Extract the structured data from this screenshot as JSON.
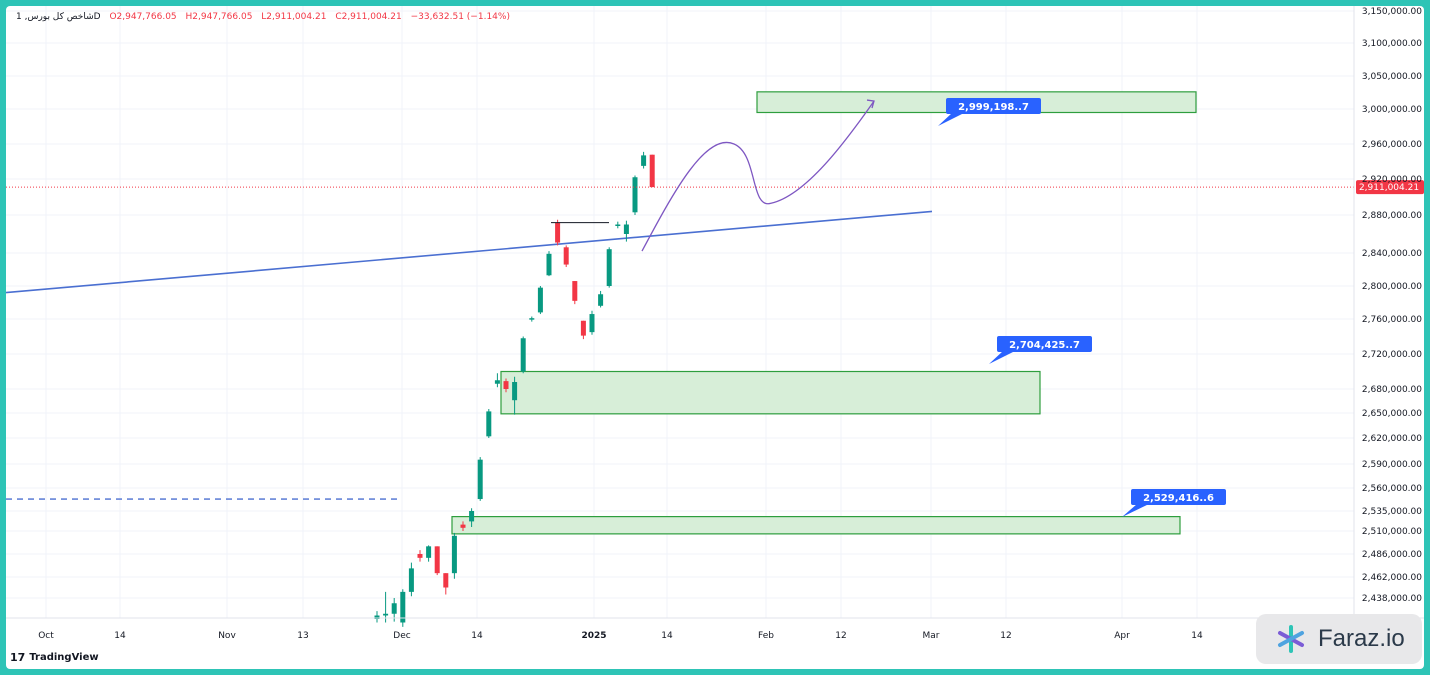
{
  "legend": {
    "symbol": "شاخص کل بورس, 1D",
    "o": "O2,947,766.05",
    "h": "H2,947,766.05",
    "l": "L2,911,004.21",
    "c": "C2,911,004.21",
    "change": "−33,632.51 (−1.14%)"
  },
  "branding": {
    "tradingview": "TradingView",
    "faraz": "Faraz.io"
  },
  "colors": {
    "up": "#089981",
    "down": "#f23645",
    "zone_fill": "#d7eed8",
    "zone_stroke": "#2e9e3e",
    "trendline": "#4a6fd1",
    "callout": "#2962ff",
    "path": "#7e57c2",
    "last_price_line": "#f23645"
  },
  "chart_data": {
    "type": "candlestick",
    "y_axis_ticks": [
      "3,150,000.00",
      "3,100,000.00",
      "3,050,000.00",
      "3,000,000.00",
      "2,960,000.00",
      "2,920,000.00",
      "2,880,000.00",
      "2,840,000.00",
      "2,800,000.00",
      "2,760,000.00",
      "2,720,000.00",
      "2,680,000.00",
      "2,650,000.00",
      "2,620,000.00",
      "2,590,000.00",
      "2,560,000.00",
      "2,535,000.00",
      "2,510,000.00",
      "2,486,000.00",
      "2,462,000.00",
      "2,438,000.00"
    ],
    "x_axis_labels": [
      "Oct",
      "14",
      "Nov",
      "13",
      "Dec",
      "14",
      "2025",
      "14",
      "Feb",
      "12",
      "Mar",
      "12",
      "Apr",
      "14"
    ],
    "last_price": "2,911,004.21",
    "candles": [
      {
        "o": 2414000,
        "h": 2423000,
        "l": 2410000,
        "c": 2418000
      },
      {
        "o": 2418000,
        "h": 2445000,
        "l": 2410000,
        "c": 2420000
      },
      {
        "o": 2420000,
        "h": 2438000,
        "l": 2411000,
        "c": 2432000
      },
      {
        "o": 2410000,
        "h": 2448000,
        "l": 2405000,
        "c": 2445000
      },
      {
        "o": 2445000,
        "h": 2477000,
        "l": 2440000,
        "c": 2471000
      },
      {
        "o": 2486000,
        "h": 2490000,
        "l": 2478000,
        "c": 2482000
      },
      {
        "o": 2482000,
        "h": 2495000,
        "l": 2478000,
        "c": 2494000
      },
      {
        "o": 2494000,
        "h": 2494000,
        "l": 2464000,
        "c": 2466000
      },
      {
        "o": 2466000,
        "h": 2466000,
        "l": 2442000,
        "c": 2450000
      },
      {
        "o": 2466000,
        "h": 2508000,
        "l": 2460000,
        "c": 2505000
      },
      {
        "o": 2518000,
        "h": 2522000,
        "l": 2510000,
        "c": 2514000
      },
      {
        "o": 2522000,
        "h": 2538000,
        "l": 2515000,
        "c": 2535000
      },
      {
        "o": 2548000,
        "h": 2598000,
        "l": 2546000,
        "c": 2595000
      },
      {
        "o": 2622000,
        "h": 2655000,
        "l": 2620000,
        "c": 2652000
      },
      {
        "o": 2686000,
        "h": 2698000,
        "l": 2682000,
        "c": 2690000
      },
      {
        "o": 2689000,
        "h": 2692000,
        "l": 2676000,
        "c": 2680000
      },
      {
        "o": 2666000,
        "h": 2694000,
        "l": 2648000,
        "c": 2688000
      },
      {
        "o": 2700000,
        "h": 2740000,
        "l": 2698000,
        "c": 2738000
      },
      {
        "o": 2760000,
        "h": 2763000,
        "l": 2757000,
        "c": 2761000
      },
      {
        "o": 2768000,
        "h": 2800000,
        "l": 2766000,
        "c": 2798000
      },
      {
        "o": 2813000,
        "h": 2842000,
        "l": 2812000,
        "c": 2839000
      },
      {
        "o": 2872000,
        "h": 2875000,
        "l": 2848000,
        "c": 2851000
      },
      {
        "o": 2846000,
        "h": 2848000,
        "l": 2823000,
        "c": 2826000
      },
      {
        "o": 2806000,
        "h": 2806000,
        "l": 2778000,
        "c": 2782000
      },
      {
        "o": 2758000,
        "h": 2758000,
        "l": 2737000,
        "c": 2741000
      },
      {
        "o": 2745000,
        "h": 2770000,
        "l": 2742000,
        "c": 2766000
      },
      {
        "o": 2776000,
        "h": 2794000,
        "l": 2774000,
        "c": 2790000
      },
      {
        "o": 2800000,
        "h": 2846000,
        "l": 2798000,
        "c": 2844000
      },
      {
        "o": 2869000,
        "h": 2873000,
        "l": 2866000,
        "c": 2870000
      },
      {
        "o": 2860000,
        "h": 2874000,
        "l": 2852000,
        "c": 2870000
      },
      {
        "o": 2883000,
        "h": 2924000,
        "l": 2880000,
        "c": 2922000
      },
      {
        "o": 2935000,
        "h": 2951000,
        "l": 2932000,
        "c": 2947000
      },
      {
        "o": 2947766,
        "h": 2947766,
        "l": 2911004,
        "c": 2911004
      }
    ],
    "zones": [
      {
        "top": 3026000,
        "bottom": 2996000,
        "label": "2,999,198..7"
      },
      {
        "top": 2700000,
        "bottom": 2649000,
        "label": "2,704,425..7"
      },
      {
        "top": 2528000,
        "bottom": 2507000,
        "label": "2,529,416..6"
      }
    ],
    "trendline": {
      "y_start": 2792000,
      "y_end": 2884000
    },
    "dashed_level": 2548000
  }
}
